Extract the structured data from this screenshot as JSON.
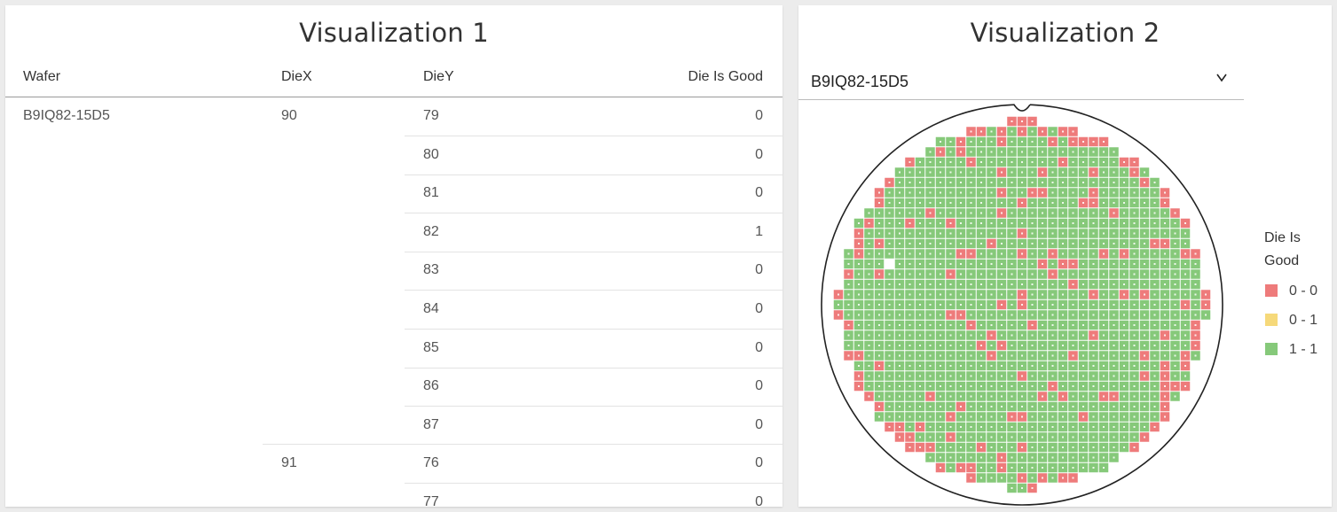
{
  "visualization1": {
    "title": "Visualization 1",
    "columns": [
      "Wafer",
      "DieX",
      "DieY",
      "Die Is Good"
    ],
    "wafer": "B9IQ82-15D5",
    "groups": [
      {
        "diex": "90",
        "rows": [
          {
            "diey": "79",
            "good": "0"
          },
          {
            "diey": "80",
            "good": "0"
          },
          {
            "diey": "81",
            "good": "0"
          },
          {
            "diey": "82",
            "good": "1"
          },
          {
            "diey": "83",
            "good": "0"
          },
          {
            "diey": "84",
            "good": "0"
          },
          {
            "diey": "85",
            "good": "0"
          },
          {
            "diey": "86",
            "good": "0"
          },
          {
            "diey": "87",
            "good": "0"
          }
        ]
      },
      {
        "diex": "91",
        "rows": [
          {
            "diey": "76",
            "good": "0"
          },
          {
            "diey": "77",
            "good": "0"
          }
        ]
      }
    ]
  },
  "visualization2": {
    "title": "Visualization 2",
    "selected_wafer": "B9IQ82-15D5",
    "dropdown_icon": "chevron-down-icon",
    "legend": {
      "title_line1": "Die Is",
      "title_line2": "Good",
      "items": [
        {
          "label": "0 - 0",
          "color": "#ee7b7b"
        },
        {
          "label": "0 - 1",
          "color": "#f6d97a"
        },
        {
          "label": "1 - 1",
          "color": "#86c97a"
        }
      ]
    },
    "colors": {
      "bad": "#ee7b7b",
      "good": "#86c97a",
      "mixed": "#f6d97a",
      "outline": "#222222"
    }
  }
}
